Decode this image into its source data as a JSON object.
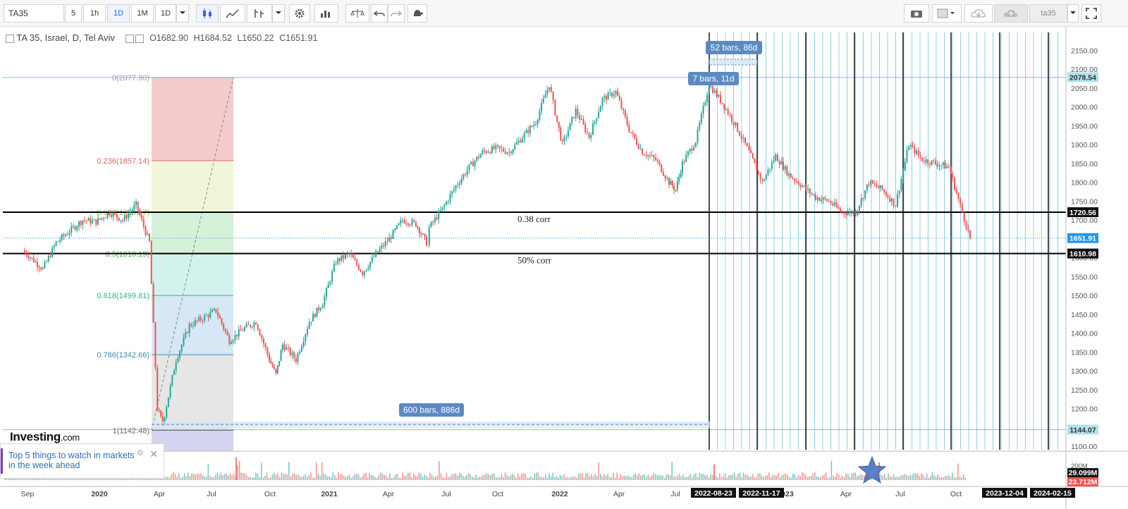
{
  "toolbar": {
    "symbol": "TA35",
    "intervals": [
      "5",
      "1h",
      "1D",
      "1M",
      "1D"
    ],
    "active_interval": "1D",
    "user_label": "ta35"
  },
  "legend": {
    "title": "TA 35, Israel, D, Tel Aviv",
    "open": "O1682.90",
    "high": "H1684.52",
    "low": "L1650.22",
    "close": "C1651.91"
  },
  "ad": {
    "text": "Top 5 things to watch in markets in the week ahead",
    "brand": "Investing",
    "brand_suffix": ".com"
  },
  "colors": {
    "up": "#26a69a",
    "down": "#ef5350",
    "grid_vert": "#5bbcd6",
    "fib_red": "#f4cccc",
    "fib_yellow": "#f1f6d8",
    "fib_green": "#d4f2da",
    "fib_mint": "#d3f2ee",
    "fib_blue": "#d6e8f5",
    "fib_grey": "#e6e6e6",
    "fib_violet": "#d5d5f2",
    "measure_bg": "#5b8ac2",
    "price_tag": "#2196f3"
  },
  "chart_data": {
    "type": "candlestick",
    "x_tick_labels": [
      "Sep",
      "2020",
      "Apr",
      "Jul",
      "Oct",
      "2021",
      "Apr",
      "Jul",
      "Oct",
      "2022",
      "Apr",
      "Jul",
      "2023",
      "Apr",
      "Jul",
      "Oct"
    ],
    "y_tick_labels": [
      "2150.00",
      "2100.00",
      "2050.00",
      "2000.00",
      "1950.00",
      "1900.00",
      "1850.00",
      "1800.00",
      "1750.00",
      "1700.00",
      "1650.00",
      "1600.00",
      "1550.00",
      "1500.00",
      "1450.00",
      "1400.00",
      "1350.00",
      "1300.00",
      "1250.00",
      "1200.00",
      "1150.00",
      "1100.00"
    ],
    "ylim": [
      1080,
      2190
    ],
    "price_path": [
      [
        1.5,
        1620
      ],
      [
        3,
        1570
      ],
      [
        4,
        1640
      ],
      [
        5,
        1670
      ],
      [
        6,
        1700
      ],
      [
        7,
        1695
      ],
      [
        8,
        1720
      ],
      [
        9,
        1700
      ],
      [
        10,
        1740
      ],
      [
        11,
        1640
      ],
      [
        11.6,
        1200
      ],
      [
        12,
        1160
      ],
      [
        13,
        1330
      ],
      [
        14,
        1420
      ],
      [
        15,
        1440
      ],
      [
        16,
        1460
      ],
      [
        17,
        1380
      ],
      [
        18,
        1410
      ],
      [
        19,
        1430
      ],
      [
        20,
        1330
      ],
      [
        20.5,
        1290
      ],
      [
        21,
        1370
      ],
      [
        22,
        1330
      ],
      [
        23,
        1430
      ],
      [
        24,
        1480
      ],
      [
        25,
        1590
      ],
      [
        26,
        1610
      ],
      [
        27,
        1560
      ],
      [
        28,
        1610
      ],
      [
        29,
        1650
      ],
      [
        30,
        1700
      ],
      [
        31,
        1690
      ],
      [
        31.8,
        1640
      ],
      [
        32,
        1680
      ],
      [
        33,
        1730
      ],
      [
        34,
        1790
      ],
      [
        35,
        1840
      ],
      [
        36,
        1880
      ],
      [
        37,
        1890
      ],
      [
        38,
        1880
      ],
      [
        39,
        1920
      ],
      [
        40,
        1960
      ],
      [
        41,
        2060
      ],
      [
        41.6,
        1960
      ],
      [
        42,
        1900
      ],
      [
        43,
        1990
      ],
      [
        44,
        1920
      ],
      [
        45,
        2020
      ],
      [
        46,
        2040
      ],
      [
        47,
        1940
      ],
      [
        48,
        1880
      ],
      [
        49,
        1860
      ],
      [
        50,
        1800
      ],
      [
        50.5,
        1780
      ],
      [
        51,
        1850
      ],
      [
        52,
        1910
      ],
      [
        53,
        2060
      ],
      [
        54,
        2010
      ],
      [
        55,
        1950
      ],
      [
        56,
        1880
      ],
      [
        57,
        1800
      ],
      [
        58,
        1870
      ],
      [
        59,
        1820
      ],
      [
        60,
        1790
      ],
      [
        61,
        1760
      ],
      [
        62,
        1750
      ],
      [
        63,
        1720
      ],
      [
        64,
        1720
      ],
      [
        65,
        1800
      ],
      [
        66,
        1780
      ],
      [
        67,
        1740
      ],
      [
        68,
        1900
      ],
      [
        69,
        1860
      ],
      [
        70,
        1850
      ],
      [
        71,
        1840
      ],
      [
        72,
        1720
      ],
      [
        72.6,
        1652
      ]
    ],
    "last": {
      "open": 1682.9,
      "high": 1684.52,
      "low": 1650.22,
      "close": 1651.91
    },
    "price_labels": [
      "2078.54",
      "1720.56",
      "1651.91",
      "1610.98",
      "1144.07"
    ],
    "horizontal_lines": [
      {
        "price": 1720.56,
        "label": "0.38 corr"
      },
      {
        "price": 1610.98,
        "label": "50% corr"
      }
    ],
    "fibonacci_retracement": [
      {
        "level": "0",
        "price": 2077.9,
        "label": "0(2077.90)"
      },
      {
        "level": "0.236",
        "price": 1857.14,
        "label": "0.236(1857.14)"
      },
      {
        "level": "0.382",
        "price": 1720.57,
        "label": "0.382(1720.57)"
      },
      {
        "level": "0.5",
        "price": 1610.19,
        "label": "0.5(1610.19)"
      },
      {
        "level": "0.618",
        "price": 1499.81,
        "label": "0.618(1499.81)"
      },
      {
        "level": "0.786",
        "price": 1342.66,
        "label": "0.786(1342.66)"
      },
      {
        "level": "1",
        "price": 1142.48,
        "label": "1(1142.48)"
      }
    ],
    "measurements": [
      "600 bars, 886d",
      "52 bars, 86d",
      "7 bars, 11d"
    ],
    "time_labels": [
      "2022-08-23",
      "2022-11-17",
      "2023-12-04",
      "2024-02-15"
    ],
    "volume": {
      "labels": [
        "200M",
        "29.099M",
        "23.712M"
      ],
      "current": "29.099M"
    },
    "annotations": [
      "0.38 corr",
      "50% corr"
    ],
    "grid": false
  }
}
